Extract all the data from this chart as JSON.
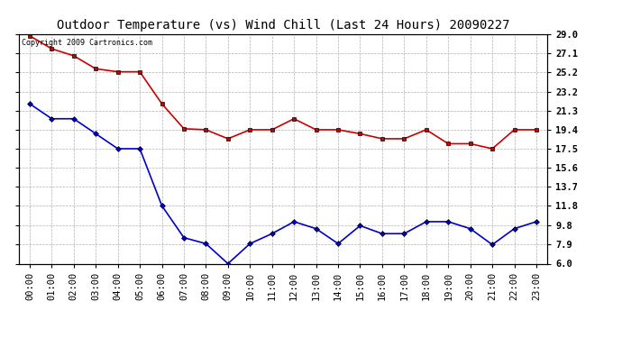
{
  "title": "Outdoor Temperature (vs) Wind Chill (Last 24 Hours) 20090227",
  "copyright_text": "Copyright 2009 Cartronics.com",
  "x_labels": [
    "00:00",
    "01:00",
    "02:00",
    "03:00",
    "04:00",
    "05:00",
    "06:00",
    "07:00",
    "08:00",
    "09:00",
    "10:00",
    "11:00",
    "12:00",
    "13:00",
    "14:00",
    "15:00",
    "16:00",
    "17:00",
    "18:00",
    "19:00",
    "20:00",
    "21:00",
    "22:00",
    "23:00"
  ],
  "y_ticks": [
    6.0,
    7.9,
    9.8,
    11.8,
    13.7,
    15.6,
    17.5,
    19.4,
    21.3,
    23.2,
    25.2,
    27.1,
    29.0
  ],
  "y_min": 6.0,
  "y_max": 29.0,
  "temp_red": [
    28.8,
    27.5,
    26.8,
    25.5,
    25.2,
    25.2,
    22.0,
    19.5,
    19.4,
    18.5,
    19.4,
    19.4,
    20.5,
    19.4,
    19.4,
    19.0,
    18.5,
    18.5,
    19.4,
    18.0,
    18.0,
    17.5,
    19.4,
    19.4
  ],
  "temp_blue": [
    22.0,
    20.5,
    20.5,
    19.0,
    17.5,
    17.5,
    11.8,
    8.6,
    8.0,
    6.0,
    8.0,
    9.0,
    10.2,
    9.5,
    8.0,
    9.8,
    9.0,
    9.0,
    10.2,
    10.2,
    9.5,
    7.9,
    9.5,
    10.2
  ],
  "red_color": "#cc0000",
  "blue_color": "#0000cc",
  "bg_color": "#ffffff",
  "plot_bg_color": "#ffffff",
  "grid_color": "#b0b0b0",
  "marker_color": "#000000",
  "title_fontsize": 10,
  "tick_fontsize": 7.5,
  "copyright_fontsize": 6
}
